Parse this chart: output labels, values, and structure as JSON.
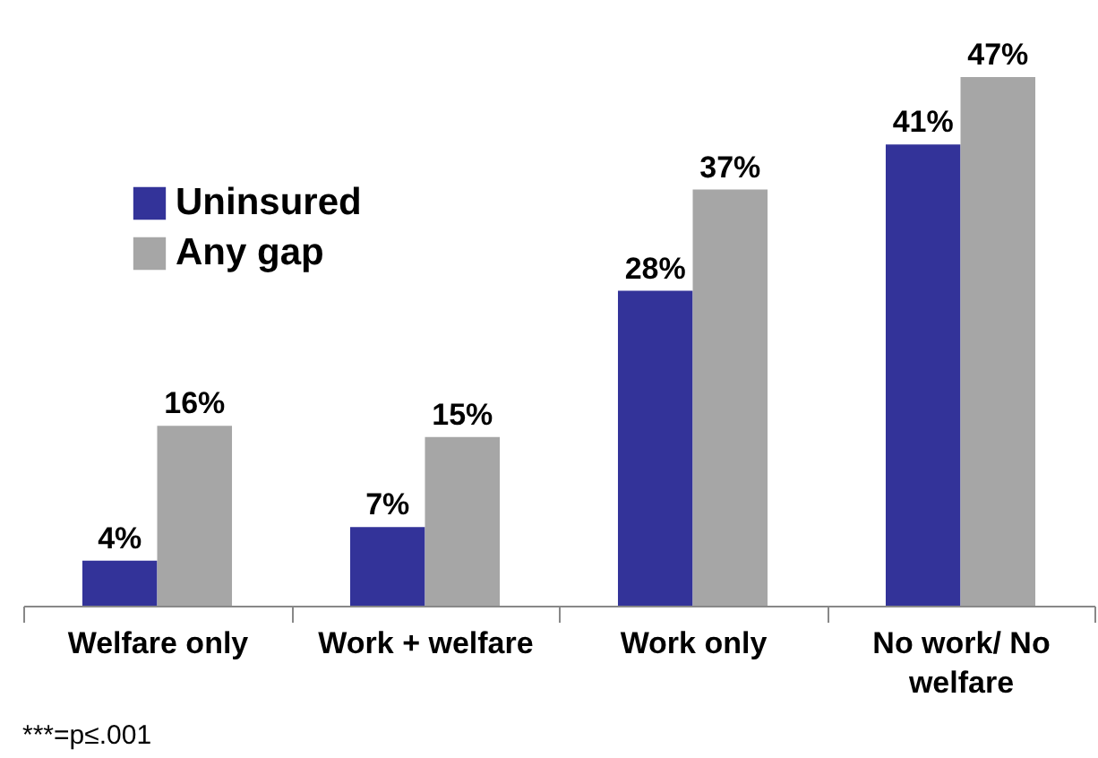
{
  "chart_data": {
    "type": "bar",
    "categories": [
      "Welfare only",
      "Work + welfare",
      "Work only",
      "No work/ No welfare"
    ],
    "series": [
      {
        "name": "Uninsured",
        "color": "#333399",
        "values": [
          4,
          7,
          28,
          41
        ],
        "value_labels": [
          "4%",
          "7%",
          "28%",
          "41%"
        ]
      },
      {
        "name": "Any gap",
        "color": "#a6a6a6",
        "values": [
          16,
          15,
          37,
          47
        ],
        "value_labels": [
          "16%",
          "15%",
          "37%",
          "47%"
        ]
      }
    ],
    "legend": "top left",
    "grid": false,
    "annotations": [
      "***=p≤.001"
    ]
  }
}
